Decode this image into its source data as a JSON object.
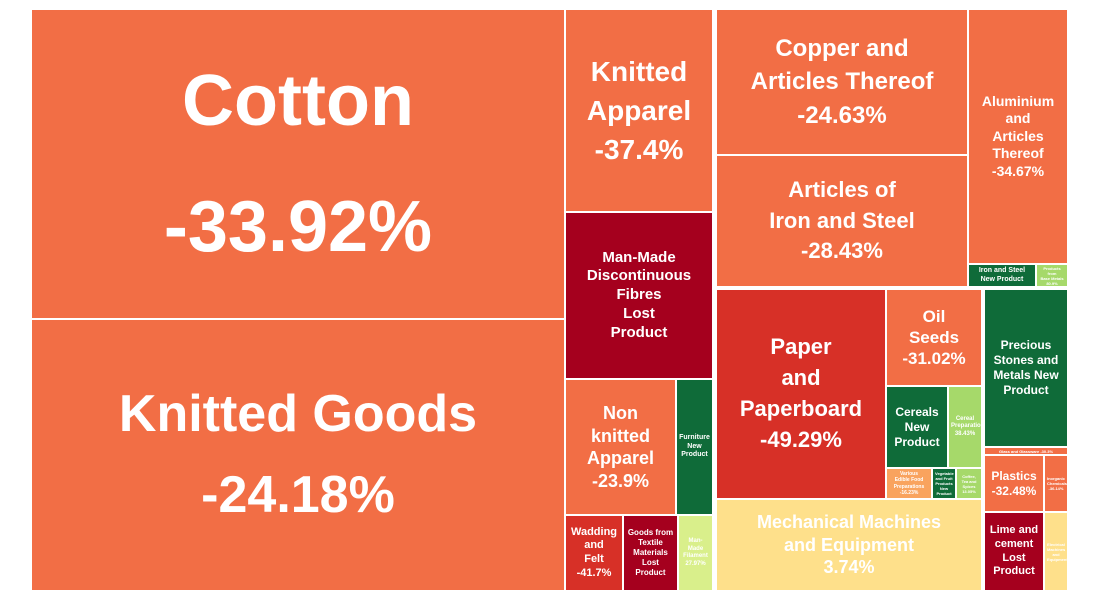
{
  "chart_data": {
    "type": "treemap",
    "title": "",
    "colors": {
      "orange": "#F26E45",
      "dark_red": "#A5001E",
      "red": "#D73027",
      "green": "#0F6B39",
      "light_green": "#A6D96A",
      "yellow_green": "#D9EF8B",
      "light_yellow": "#FEE08B",
      "light_orange": "#F9A35E"
    },
    "tiles": [
      {
        "name": "Cotton",
        "value": "-33.92%",
        "change": -33.92,
        "color": "#F26E45"
      },
      {
        "name": "Knitted Goods",
        "value": "-24.18%",
        "change": -24.18,
        "color": "#F26E45"
      },
      {
        "name": "Knitted Apparel",
        "value": "-37.4%",
        "change": -37.4,
        "color": "#F26E45"
      },
      {
        "name": "Man-Made Discontinuous Fibres Lost Product",
        "value": "",
        "change": null,
        "color": "#A5001E"
      },
      {
        "name": "Non knitted Apparel",
        "value": "-23.9%",
        "change": -23.9,
        "color": "#F26E45"
      },
      {
        "name": "Furniture New Product",
        "value": "",
        "change": null,
        "color": "#0F6B39"
      },
      {
        "name": "Wadding and Felt",
        "value": "-41.7%",
        "change": -41.7,
        "color": "#D73027"
      },
      {
        "name": "Goods from Textile Materials Lost Product",
        "value": "",
        "change": null,
        "color": "#A5001E"
      },
      {
        "name": "Man-Made Filament",
        "value": "27.97%",
        "change": 27.97,
        "color": "#D9EF8B"
      },
      {
        "name": "Copper and Articles Thereof",
        "value": "-24.63%",
        "change": -24.63,
        "color": "#F26E45"
      },
      {
        "name": "Aluminium and Articles Thereof",
        "value": "-34.67%",
        "change": -34.67,
        "color": "#F26E45"
      },
      {
        "name": "Articles of Iron and Steel",
        "value": "-28.43%",
        "change": -28.43,
        "color": "#F26E45"
      },
      {
        "name": "Iron and Steel New Product",
        "value": "",
        "change": null,
        "color": "#0F6B39"
      },
      {
        "name": "Products from Base Metals",
        "value": "80.9%",
        "change": 80.9,
        "color": "#A6D96A"
      },
      {
        "name": "Paper and Paperboard",
        "value": "-49.29%",
        "change": -49.29,
        "color": "#D73027"
      },
      {
        "name": "Oil Seeds",
        "value": "-31.02%",
        "change": -31.02,
        "color": "#F26E45"
      },
      {
        "name": "Cereals New Product",
        "value": "",
        "change": null,
        "color": "#0F6B39"
      },
      {
        "name": "Cereal Preparations",
        "value": "38.43%",
        "change": 38.43,
        "color": "#A6D96A"
      },
      {
        "name": "Various Edible Food Preparations",
        "value": "-16.23%",
        "change": -16.23,
        "color": "#F9A35E"
      },
      {
        "name": "Vegetable and Fruit Products New Product",
        "value": "",
        "change": null,
        "color": "#0F6B39"
      },
      {
        "name": "Coffee, Tea and Spices",
        "value": "13.05%",
        "change": 13.05,
        "color": "#A6D96A"
      },
      {
        "name": "Precious Stones and Metals New Product",
        "value": "",
        "change": null,
        "color": "#0F6B39"
      },
      {
        "name": "Glass and Glassware",
        "value": "-30.3%",
        "change": -30.3,
        "color": "#F26E45"
      },
      {
        "name": "Plastics",
        "value": "-32.48%",
        "change": -32.48,
        "color": "#F26E45"
      },
      {
        "name": "Inorganic Chemicals",
        "value": "-36.14%",
        "change": -36.14,
        "color": "#F26E45"
      },
      {
        "name": "Mechanical Machines and Equipment",
        "value": "3.74%",
        "change": 3.74,
        "color": "#FEE08B"
      },
      {
        "name": "Lime and cement Lost Product",
        "value": "",
        "change": null,
        "color": "#A5001E"
      },
      {
        "name": "Electrical Machines and Equipment",
        "value": "",
        "change": null,
        "color": "#FEE08B"
      }
    ]
  }
}
